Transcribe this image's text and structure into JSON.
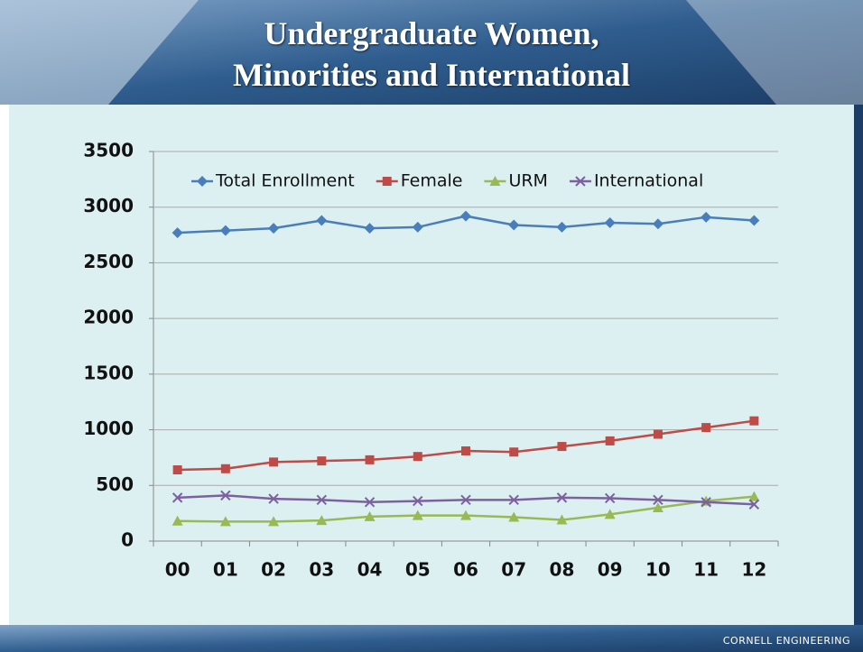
{
  "chart_data": {
    "type": "line",
    "title": "Undergraduate Women,\nMinorities and International",
    "categories": [
      "00",
      "01",
      "02",
      "03",
      "04",
      "05",
      "06",
      "07",
      "08",
      "09",
      "10",
      "11",
      "12"
    ],
    "series": [
      {
        "name": "Total Enrollment",
        "color": "#4a7ebb",
        "marker": "diamond",
        "values": [
          2770,
          2790,
          2810,
          2880,
          2810,
          2820,
          2920,
          2840,
          2820,
          2860,
          2850,
          2910,
          2880
        ]
      },
      {
        "name": "Female",
        "color": "#be4b48",
        "marker": "square",
        "values": [
          640,
          650,
          710,
          720,
          730,
          760,
          810,
          800,
          850,
          900,
          960,
          1020,
          1080
        ]
      },
      {
        "name": "URM",
        "color": "#98b954",
        "marker": "triangle",
        "values": [
          180,
          175,
          175,
          185,
          220,
          230,
          230,
          215,
          190,
          240,
          300,
          360,
          400
        ]
      },
      {
        "name": "International",
        "color": "#7d60a0",
        "marker": "x",
        "values": [
          390,
          410,
          380,
          370,
          350,
          360,
          370,
          370,
          390,
          385,
          370,
          350,
          330
        ]
      }
    ],
    "ylim": [
      0,
      3500
    ],
    "yticks": [
      0,
      500,
      1000,
      1500,
      2000,
      2500,
      3000,
      3500
    ],
    "grid": true,
    "legend": "top"
  },
  "footer": "CORNELL ENGINEERING"
}
